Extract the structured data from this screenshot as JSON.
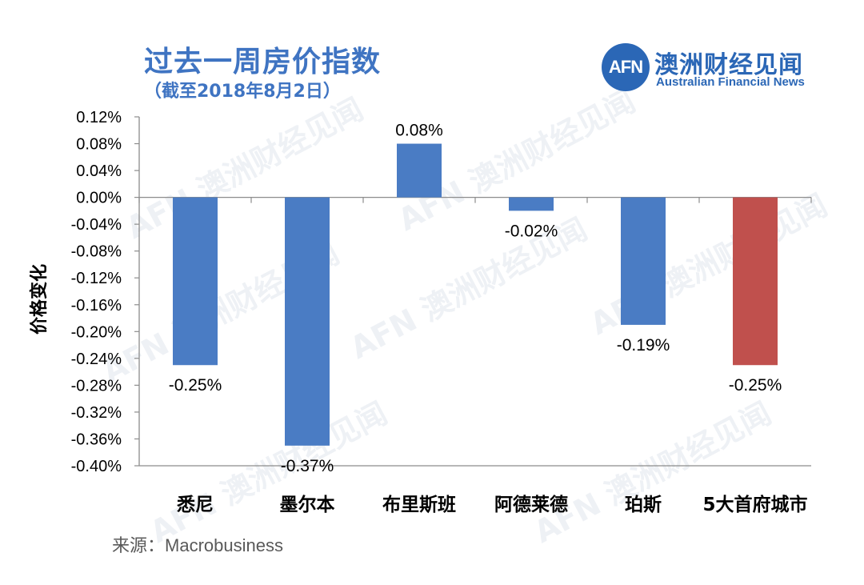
{
  "header": {
    "title": "过去一周房价指数",
    "subtitle": "（截至2018年8月2日）"
  },
  "brand": {
    "logo_text": "AFN",
    "name_cn": "澳洲财经见闻",
    "name_en": "Australian Financial News",
    "color": "#2b67b6"
  },
  "source": {
    "label": "来源：",
    "value": "Macrobusiness"
  },
  "colors": {
    "bar_default": "#4a7cc4",
    "bar_highlight": "#c0504d",
    "title": "#3f74c2"
  },
  "chart_data": {
    "type": "bar",
    "title": "过去一周房价指数",
    "subtitle": "（截至2018年8月2日）",
    "xlabel": "",
    "ylabel": "价格变化",
    "categories": [
      "悉尼",
      "墨尔本",
      "布里斯班",
      "阿德莱德",
      "珀斯",
      "5大首府城市"
    ],
    "values": [
      -0.25,
      -0.37,
      0.08,
      -0.02,
      -0.19,
      -0.25
    ],
    "value_labels": [
      "-0.25%",
      "-0.37%",
      "0.08%",
      "-0.02%",
      "-0.19%",
      "-0.25%"
    ],
    "highlight_index": 5,
    "ylim": [
      -0.4,
      0.12
    ],
    "yticks": [
      0.12,
      0.08,
      0.04,
      0.0,
      -0.04,
      -0.08,
      -0.12,
      -0.16,
      -0.2,
      -0.24,
      -0.28,
      -0.32,
      -0.36,
      -0.4
    ],
    "ytick_labels": [
      "0.12%",
      "0.08%",
      "0.04%",
      "0.00%",
      "-0.04%",
      "-0.08%",
      "-0.12%",
      "-0.16%",
      "-0.20%",
      "-0.24%",
      "-0.28%",
      "-0.32%",
      "-0.36%",
      "-0.40%"
    ],
    "grid": false,
    "legend": "none"
  },
  "watermark": {
    "text": "AFN 澳洲财经见闻"
  }
}
